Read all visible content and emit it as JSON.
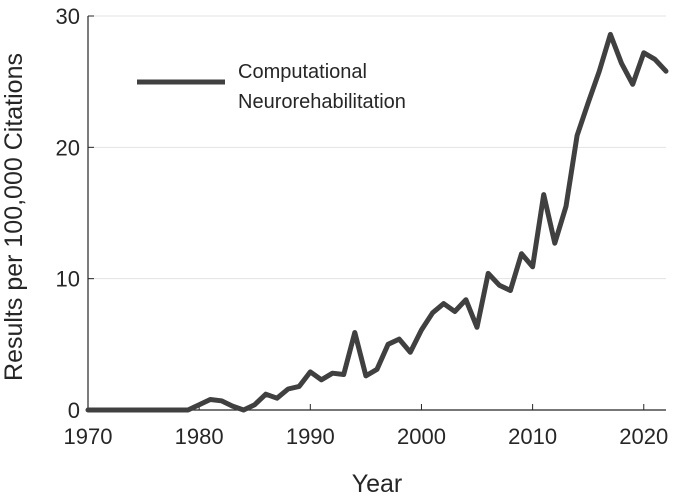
{
  "chart_data": {
    "type": "line",
    "title": "",
    "xlabel": "Year",
    "ylabel": "Results per 100,000 Citations",
    "xlim": [
      1970,
      2022
    ],
    "ylim": [
      0,
      30
    ],
    "xticks": [
      1970,
      1980,
      1990,
      2000,
      2010,
      2020
    ],
    "yticks": [
      0,
      10,
      20,
      30
    ],
    "grid": "horizontal",
    "legend_position": "top-left",
    "legend_lines": [
      "Computational",
      "Neurorehabilitation"
    ],
    "series_color": "#404040",
    "series": [
      {
        "name": "Computational Neurorehabilitation",
        "x": [
          1970,
          1971,
          1972,
          1973,
          1974,
          1975,
          1976,
          1977,
          1978,
          1979,
          1980,
          1981,
          1982,
          1983,
          1984,
          1985,
          1986,
          1987,
          1988,
          1989,
          1990,
          1991,
          1992,
          1993,
          1994,
          1995,
          1996,
          1997,
          1998,
          1999,
          2000,
          2001,
          2002,
          2003,
          2004,
          2005,
          2006,
          2007,
          2008,
          2009,
          2010,
          2011,
          2012,
          2013,
          2014,
          2015,
          2016,
          2017,
          2018,
          2019,
          2020,
          2021,
          2022
        ],
        "values": [
          0,
          0,
          0,
          0,
          0,
          0,
          0,
          0,
          0,
          0,
          0.4,
          0.8,
          0.7,
          0.3,
          0,
          0.4,
          1.2,
          0.9,
          1.6,
          1.8,
          2.9,
          2.3,
          2.8,
          2.7,
          5.9,
          2.6,
          3.1,
          5.0,
          5.4,
          4.4,
          6.1,
          7.4,
          8.1,
          7.5,
          8.4,
          6.3,
          10.4,
          9.5,
          9.1,
          11.9,
          10.9,
          16.4,
          12.7,
          15.5,
          20.9,
          23.4,
          25.8,
          28.6,
          26.4,
          24.8,
          27.2,
          26.7,
          25.8
        ]
      }
    ]
  }
}
